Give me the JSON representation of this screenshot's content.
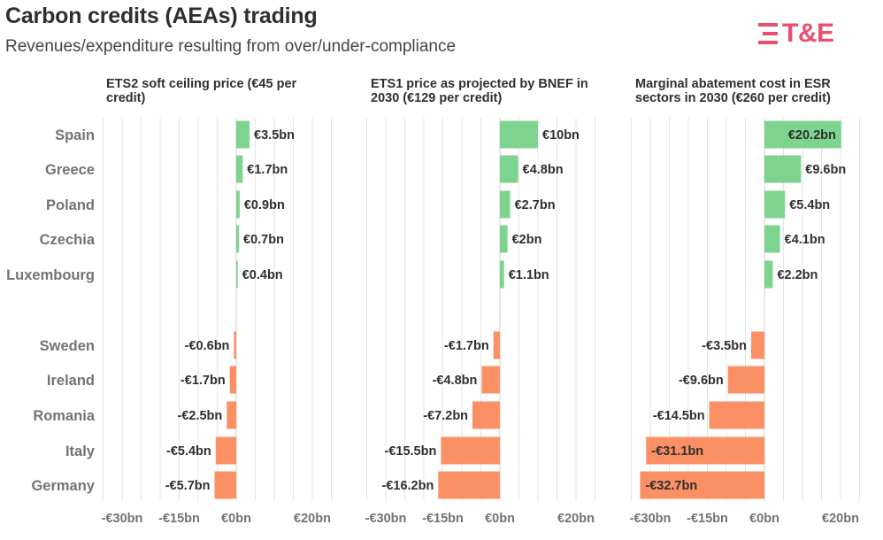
{
  "header": {
    "title": "Carbon credits (AEAs) trading",
    "subtitle": "Revenues/expenditure resulting from over/under-compliance"
  },
  "brand": {
    "logo_text": "T&E",
    "logo_icon": "t-and-e-logo-icon",
    "logo_color": "#e8506e"
  },
  "colors": {
    "positive": "#7ed48f",
    "negative": "#fc9065",
    "grid": "#e4e4e4"
  },
  "chart_data": [
    {
      "type": "bar",
      "orientation": "horizontal",
      "title": "ETS2 soft ceiling price (€45 per credit)",
      "title_lines": [
        "ETS2 soft ceiling price (€45 per",
        "credit)"
      ],
      "categories": [
        "Spain",
        "Greece",
        "Poland",
        "Czechia",
        "Luxembourg",
        "Sweden",
        "Ireland",
        "Romania",
        "Italy",
        "Germany"
      ],
      "values": [
        3.5,
        1.7,
        0.9,
        0.7,
        0.4,
        -0.6,
        -1.7,
        -2.5,
        -5.4,
        -5.7
      ],
      "labels": [
        "€3.5bn",
        "€1.7bn",
        "€0.9bn",
        "€0.7bn",
        "€0.4bn",
        "-€0.6bn",
        "-€1.7bn",
        "-€2.5bn",
        "-€5.4bn",
        "-€5.7bn"
      ],
      "xlim": [
        -35,
        25
      ],
      "x_ticks": [
        -30,
        -15,
        0,
        20
      ],
      "x_tick_labels": [
        "-€30bn",
        "-€15bn",
        "€0bn",
        "€20bn"
      ],
      "grid": true,
      "show_categories": true
    },
    {
      "type": "bar",
      "orientation": "horizontal",
      "title": "ETS1 price as projected by BNEF in 2030 (€129 per credit)",
      "title_lines": [
        "ETS1 price as projected by BNEF in",
        "2030 (€129 per credit)"
      ],
      "categories": [
        "Spain",
        "Greece",
        "Poland",
        "Czechia",
        "Luxembourg",
        "Sweden",
        "Ireland",
        "Romania",
        "Italy",
        "Germany"
      ],
      "values": [
        10,
        4.8,
        2.7,
        2,
        1.1,
        -1.7,
        -4.8,
        -7.2,
        -15.5,
        -16.2
      ],
      "labels": [
        "€10bn",
        "€4.8bn",
        "€2.7bn",
        "€2bn",
        "€1.1bn",
        "-€1.7bn",
        "-€4.8bn",
        "-€7.2bn",
        "-€15.5bn",
        "-€16.2bn"
      ],
      "xlim": [
        -35,
        25
      ],
      "x_ticks": [
        -30,
        -15,
        0,
        20
      ],
      "x_tick_labels": [
        "-€30bn",
        "-€15bn",
        "€0bn",
        "€20bn"
      ],
      "grid": true,
      "show_categories": false
    },
    {
      "type": "bar",
      "orientation": "horizontal",
      "title": "Marginal abatement cost in ESR sectors in 2030 (€260 per credit)",
      "title_lines": [
        "Marginal abatement cost in ESR",
        "sectors in 2030 (€260 per credit)"
      ],
      "categories": [
        "Spain",
        "Greece",
        "Poland",
        "Czechia",
        "Luxembourg",
        "Sweden",
        "Ireland",
        "Romania",
        "Italy",
        "Germany"
      ],
      "values": [
        20.2,
        9.6,
        5.4,
        4.1,
        2.2,
        -3.5,
        -9.6,
        -14.5,
        -31.1,
        -32.7
      ],
      "labels": [
        "€20.2bn",
        "€9.6bn",
        "€5.4bn",
        "€4.1bn",
        "€2.2bn",
        "-€3.5bn",
        "-€9.6bn",
        "-€14.5bn",
        "-€31.1bn",
        "-€32.7bn"
      ],
      "xlim": [
        -35,
        25
      ],
      "x_ticks": [
        -30,
        -15,
        0,
        20
      ],
      "x_tick_labels": [
        "-€30bn",
        "-€15bn",
        "€0bn",
        "€20bn"
      ],
      "grid": true,
      "show_categories": false
    }
  ]
}
